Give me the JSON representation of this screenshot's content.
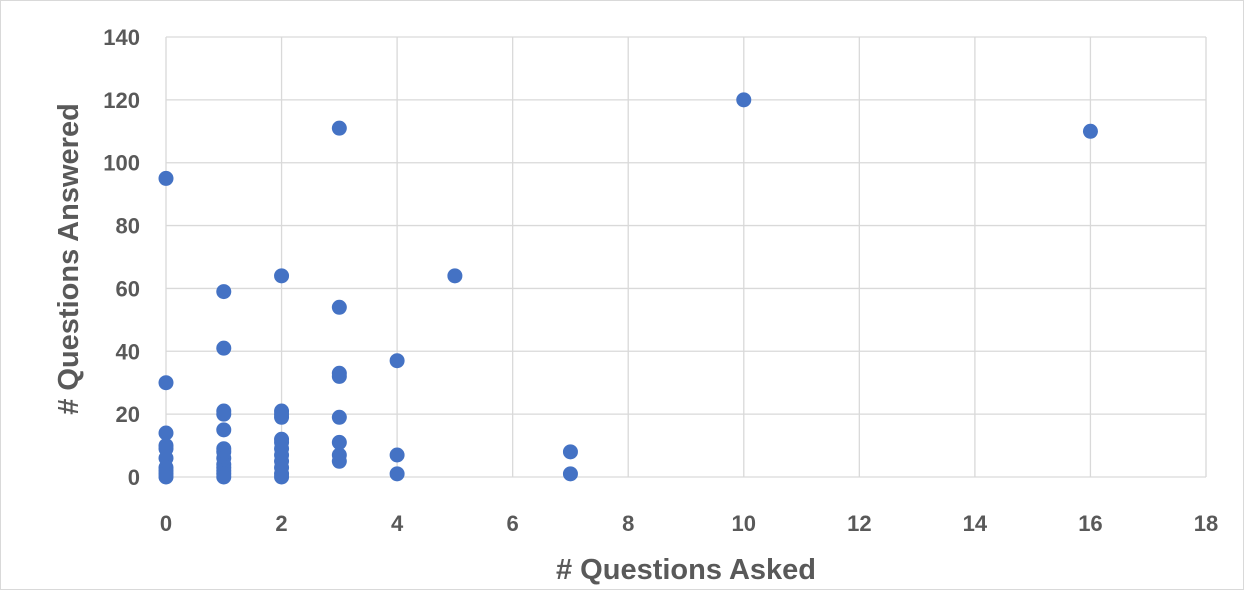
{
  "chart_data": {
    "type": "scatter",
    "title": "",
    "xlabel": "# Questions Asked",
    "ylabel": "# Questions Answered",
    "xlim": [
      0,
      18
    ],
    "ylim": [
      0,
      140
    ],
    "xticks": [
      0,
      2,
      4,
      6,
      8,
      10,
      12,
      14,
      16,
      18
    ],
    "yticks": [
      0,
      20,
      40,
      60,
      80,
      100,
      120,
      140
    ],
    "grid": true,
    "legend": "none",
    "marker_color": "#4472c4",
    "series": [
      {
        "points": [
          [
            0,
            95
          ],
          [
            0,
            30
          ],
          [
            0,
            14
          ],
          [
            0,
            10
          ],
          [
            0,
            9
          ],
          [
            0,
            6
          ],
          [
            0,
            3
          ],
          [
            0,
            2
          ],
          [
            0,
            1
          ],
          [
            0,
            0
          ],
          [
            1,
            59
          ],
          [
            1,
            41
          ],
          [
            1,
            21
          ],
          [
            1,
            20
          ],
          [
            1,
            15
          ],
          [
            1,
            9
          ],
          [
            1,
            8
          ],
          [
            1,
            6
          ],
          [
            1,
            4
          ],
          [
            1,
            3
          ],
          [
            1,
            2
          ],
          [
            1,
            1
          ],
          [
            1,
            0
          ],
          [
            2,
            64
          ],
          [
            2,
            21
          ],
          [
            2,
            20
          ],
          [
            2,
            19
          ],
          [
            2,
            12
          ],
          [
            2,
            11
          ],
          [
            2,
            9
          ],
          [
            2,
            7
          ],
          [
            2,
            5
          ],
          [
            2,
            3
          ],
          [
            2,
            1
          ],
          [
            2,
            0
          ],
          [
            3,
            111
          ],
          [
            3,
            54
          ],
          [
            3,
            33
          ],
          [
            3,
            32
          ],
          [
            3,
            19
          ],
          [
            3,
            11
          ],
          [
            3,
            7
          ],
          [
            3,
            5
          ],
          [
            4,
            37
          ],
          [
            4,
            7
          ],
          [
            4,
            1
          ],
          [
            5,
            64
          ],
          [
            7,
            8
          ],
          [
            7,
            1
          ],
          [
            10,
            120
          ],
          [
            16,
            110
          ]
        ]
      }
    ]
  }
}
